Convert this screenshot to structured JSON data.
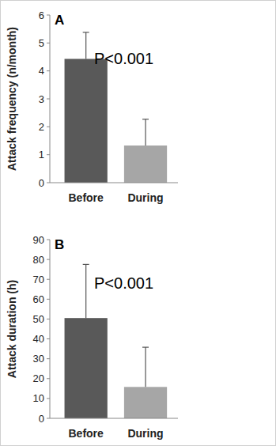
{
  "chart_data": [
    {
      "type": "bar",
      "title": "A",
      "y_label": "Attack frequency (n/month)",
      "categories": [
        "Before",
        "During"
      ],
      "values": [
        4.43,
        1.33
      ],
      "errors": [
        0.95,
        0.94
      ],
      "colors": [
        "#595959",
        "#a6a6a6"
      ],
      "annotation": "P<0.001",
      "ylim": [
        0,
        6
      ],
      "yticks": [
        0,
        1,
        2,
        3,
        4,
        5,
        6
      ],
      "grid": false
    },
    {
      "type": "bar",
      "title": "B",
      "y_label": "Attack duration (h)",
      "categories": [
        "Before",
        "During"
      ],
      "values": [
        50.5,
        15.8
      ],
      "errors": [
        27,
        20
      ],
      "colors": [
        "#595959",
        "#a6a6a6"
      ],
      "annotation": "P<0.001",
      "ylim": [
        0,
        90
      ],
      "yticks": [
        0,
        10,
        20,
        30,
        40,
        50,
        60,
        70,
        80,
        90
      ],
      "grid": false
    }
  ]
}
